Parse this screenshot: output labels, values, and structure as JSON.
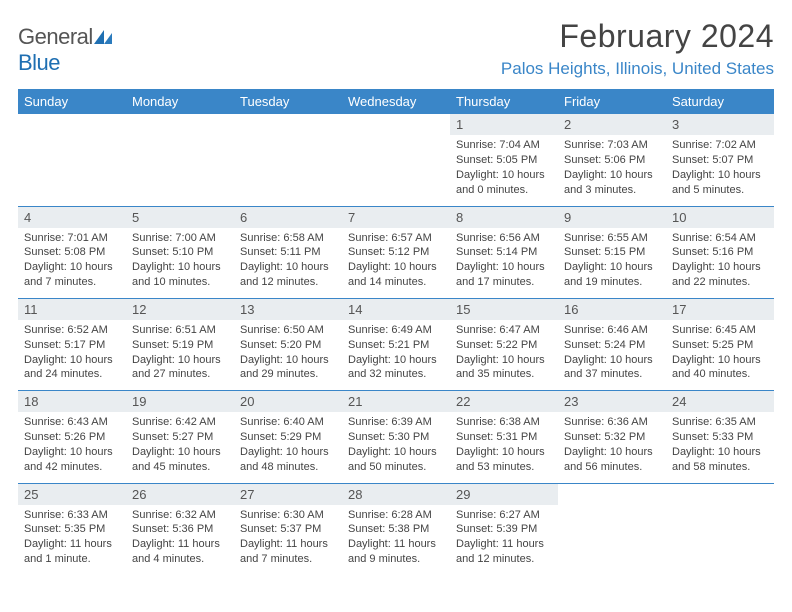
{
  "brand": {
    "part1": "General",
    "part2": "Blue"
  },
  "title": "February 2024",
  "location": "Palos Heights, Illinois, United States",
  "colors": {
    "header_bg": "#3a86c8",
    "header_text": "#ffffff",
    "daynum_bg": "#e9edf0",
    "border": "#3a86c8",
    "location_text": "#3a86c8",
    "body_text": "#444"
  },
  "dayHeaders": [
    "Sunday",
    "Monday",
    "Tuesday",
    "Wednesday",
    "Thursday",
    "Friday",
    "Saturday"
  ],
  "weeks": [
    [
      null,
      null,
      null,
      null,
      {
        "n": "1",
        "sr": "7:04 AM",
        "ss": "5:05 PM",
        "dl": "10 hours and 0 minutes."
      },
      {
        "n": "2",
        "sr": "7:03 AM",
        "ss": "5:06 PM",
        "dl": "10 hours and 3 minutes."
      },
      {
        "n": "3",
        "sr": "7:02 AM",
        "ss": "5:07 PM",
        "dl": "10 hours and 5 minutes."
      }
    ],
    [
      {
        "n": "4",
        "sr": "7:01 AM",
        "ss": "5:08 PM",
        "dl": "10 hours and 7 minutes."
      },
      {
        "n": "5",
        "sr": "7:00 AM",
        "ss": "5:10 PM",
        "dl": "10 hours and 10 minutes."
      },
      {
        "n": "6",
        "sr": "6:58 AM",
        "ss": "5:11 PM",
        "dl": "10 hours and 12 minutes."
      },
      {
        "n": "7",
        "sr": "6:57 AM",
        "ss": "5:12 PM",
        "dl": "10 hours and 14 minutes."
      },
      {
        "n": "8",
        "sr": "6:56 AM",
        "ss": "5:14 PM",
        "dl": "10 hours and 17 minutes."
      },
      {
        "n": "9",
        "sr": "6:55 AM",
        "ss": "5:15 PM",
        "dl": "10 hours and 19 minutes."
      },
      {
        "n": "10",
        "sr": "6:54 AM",
        "ss": "5:16 PM",
        "dl": "10 hours and 22 minutes."
      }
    ],
    [
      {
        "n": "11",
        "sr": "6:52 AM",
        "ss": "5:17 PM",
        "dl": "10 hours and 24 minutes."
      },
      {
        "n": "12",
        "sr": "6:51 AM",
        "ss": "5:19 PM",
        "dl": "10 hours and 27 minutes."
      },
      {
        "n": "13",
        "sr": "6:50 AM",
        "ss": "5:20 PM",
        "dl": "10 hours and 29 minutes."
      },
      {
        "n": "14",
        "sr": "6:49 AM",
        "ss": "5:21 PM",
        "dl": "10 hours and 32 minutes."
      },
      {
        "n": "15",
        "sr": "6:47 AM",
        "ss": "5:22 PM",
        "dl": "10 hours and 35 minutes."
      },
      {
        "n": "16",
        "sr": "6:46 AM",
        "ss": "5:24 PM",
        "dl": "10 hours and 37 minutes."
      },
      {
        "n": "17",
        "sr": "6:45 AM",
        "ss": "5:25 PM",
        "dl": "10 hours and 40 minutes."
      }
    ],
    [
      {
        "n": "18",
        "sr": "6:43 AM",
        "ss": "5:26 PM",
        "dl": "10 hours and 42 minutes."
      },
      {
        "n": "19",
        "sr": "6:42 AM",
        "ss": "5:27 PM",
        "dl": "10 hours and 45 minutes."
      },
      {
        "n": "20",
        "sr": "6:40 AM",
        "ss": "5:29 PM",
        "dl": "10 hours and 48 minutes."
      },
      {
        "n": "21",
        "sr": "6:39 AM",
        "ss": "5:30 PM",
        "dl": "10 hours and 50 minutes."
      },
      {
        "n": "22",
        "sr": "6:38 AM",
        "ss": "5:31 PM",
        "dl": "10 hours and 53 minutes."
      },
      {
        "n": "23",
        "sr": "6:36 AM",
        "ss": "5:32 PM",
        "dl": "10 hours and 56 minutes."
      },
      {
        "n": "24",
        "sr": "6:35 AM",
        "ss": "5:33 PM",
        "dl": "10 hours and 58 minutes."
      }
    ],
    [
      {
        "n": "25",
        "sr": "6:33 AM",
        "ss": "5:35 PM",
        "dl": "11 hours and 1 minute."
      },
      {
        "n": "26",
        "sr": "6:32 AM",
        "ss": "5:36 PM",
        "dl": "11 hours and 4 minutes."
      },
      {
        "n": "27",
        "sr": "6:30 AM",
        "ss": "5:37 PM",
        "dl": "11 hours and 7 minutes."
      },
      {
        "n": "28",
        "sr": "6:28 AM",
        "ss": "5:38 PM",
        "dl": "11 hours and 9 minutes."
      },
      {
        "n": "29",
        "sr": "6:27 AM",
        "ss": "5:39 PM",
        "dl": "11 hours and 12 minutes."
      },
      null,
      null
    ]
  ],
  "labels": {
    "sunrise": "Sunrise: ",
    "sunset": "Sunset: ",
    "daylight": "Daylight: "
  }
}
